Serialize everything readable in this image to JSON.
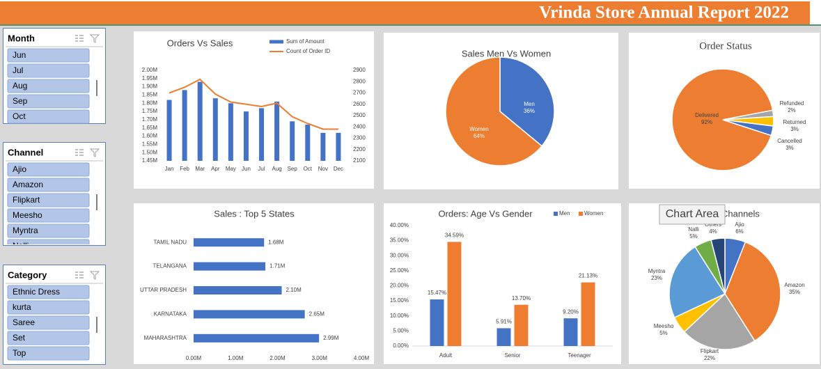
{
  "header": {
    "title": "Vrinda Store Annual Report 2022"
  },
  "slicers": [
    {
      "title": "Month",
      "items": [
        "Jun",
        "Jul",
        "Aug",
        "Sep",
        "Oct"
      ]
    },
    {
      "title": "Channel",
      "items": [
        "Ajio",
        "Amazon",
        "Flipkart",
        "Meesho",
        "Myntra",
        "Nalli"
      ]
    },
    {
      "title": "Category",
      "items": [
        "Ethnic Dress",
        "kurta",
        "Saree",
        "Set",
        "Top"
      ]
    }
  ],
  "tooltip": "Chart Area",
  "chart_data": [
    {
      "type": "combo",
      "title": "Orders Vs Sales",
      "categories": [
        "Jan",
        "Feb",
        "Mar",
        "Apr",
        "May",
        "Jun",
        "Jul",
        "Aug",
        "Sep",
        "Oct",
        "Nov",
        "Dec"
      ],
      "series": [
        {
          "name": "Sum of Amount",
          "type": "bar",
          "color": "#4472c4",
          "values": [
            1820000,
            1880000,
            1930000,
            1830000,
            1800000,
            1750000,
            1770000,
            1810000,
            1690000,
            1670000,
            1620000,
            1620000
          ]
        },
        {
          "name": "Count of Order ID",
          "type": "line",
          "axis": "y2",
          "color": "#ed7d31",
          "values": [
            2700,
            2750,
            2820,
            2690,
            2620,
            2600,
            2580,
            2610,
            2490,
            2430,
            2380,
            2380
          ]
        }
      ],
      "ylim": [
        1450000,
        2000000
      ],
      "yticks": [
        {
          "value": 1450000,
          "label": "1.45M"
        },
        {
          "value": 1500000,
          "label": "1.50M"
        },
        {
          "value": 1550000,
          "label": "1.55M"
        },
        {
          "value": 1600000,
          "label": "1.60M"
        },
        {
          "value": 1650000,
          "label": "1.65M"
        },
        {
          "value": 1700000,
          "label": "1.70M"
        },
        {
          "value": 1750000,
          "label": "1.75M"
        },
        {
          "value": 1800000,
          "label": "1.80M"
        },
        {
          "value": 1850000,
          "label": "1.85M"
        },
        {
          "value": 1900000,
          "label": "1.90M"
        },
        {
          "value": 1950000,
          "label": "1.95M"
        },
        {
          "value": 2000000,
          "label": "2.00M"
        }
      ],
      "y2lim": [
        2100,
        2900
      ],
      "y2ticks": [
        2100,
        2200,
        2300,
        2400,
        2500,
        2600,
        2700,
        2800,
        2900
      ]
    },
    {
      "type": "pie",
      "title": "Sales Men Vs Women",
      "categories": [
        "Men",
        "Women"
      ],
      "values": [
        36,
        64
      ],
      "value_labels": [
        "36%",
        "64%"
      ],
      "colors": [
        "#4472c4",
        "#ed7d31"
      ]
    },
    {
      "type": "pie",
      "title": "Order Status",
      "categories": [
        "Delivered",
        "Refunded",
        "Returned",
        "Cancelled"
      ],
      "values": [
        92,
        2,
        3,
        3
      ],
      "value_labels": [
        "92%",
        "2%",
        "3%",
        "3%"
      ],
      "colors": [
        "#ed7d31",
        "#a5a5a5",
        "#ffc000",
        "#4472c4"
      ]
    },
    {
      "type": "hbar",
      "title": "Sales : Top 5 States",
      "categories": [
        "TAMIL NADU",
        "TELANGANA",
        "UTTAR PRADESH",
        "KARNATAKA",
        "MAHARASHTRA"
      ],
      "values": [
        1680000,
        1710000,
        2100000,
        2650000,
        2990000
      ],
      "value_labels": [
        "1.68M",
        "1.71M",
        "2.10M",
        "2.65M",
        "2.99M"
      ],
      "color": "#4472c4",
      "xlim": [
        0,
        4000000
      ],
      "xticks": [
        {
          "value": 0,
          "label": "0.00M"
        },
        {
          "value": 1000000,
          "label": "1.00M"
        },
        {
          "value": 2000000,
          "label": "2.00M"
        },
        {
          "value": 3000000,
          "label": "3.00M"
        },
        {
          "value": 4000000,
          "label": "4.00M"
        }
      ]
    },
    {
      "type": "bar",
      "title": "Orders: Age Vs Gender",
      "categories": [
        "Adult",
        "Senior",
        "Teenager"
      ],
      "series": [
        {
          "name": "Men",
          "color": "#4472c4",
          "values": [
            15.47,
            5.91,
            9.2
          ],
          "value_labels": [
            "15.47%",
            "5.91%",
            "9.20%"
          ]
        },
        {
          "name": "Women",
          "color": "#ed7d31",
          "values": [
            34.59,
            13.7,
            21.13
          ],
          "value_labels": [
            "34.59%",
            "13.70%",
            "21.13%"
          ]
        }
      ],
      "ylim": [
        0,
        40
      ],
      "yticks": [
        {
          "value": 0,
          "label": "0.00%"
        },
        {
          "value": 5,
          "label": "5.00%"
        },
        {
          "value": 10,
          "label": "10.00%"
        },
        {
          "value": 15,
          "label": "15.00%"
        },
        {
          "value": 20,
          "label": "20.00%"
        },
        {
          "value": 25,
          "label": "25.00%"
        },
        {
          "value": 30,
          "label": "30.00%"
        },
        {
          "value": 35,
          "label": "35.00%"
        },
        {
          "value": 40,
          "label": "40.00%"
        }
      ],
      "legend": "top-right"
    },
    {
      "type": "pie",
      "title": "Orders: Channels",
      "categories": [
        "Ajio",
        "Amazon",
        "Flipkart",
        "Meesho",
        "Myntra",
        "Nalli",
        "Others"
      ],
      "values": [
        6,
        35,
        22,
        5,
        23,
        5,
        4
      ],
      "value_labels": [
        "6%",
        "35%",
        "22%",
        "5%",
        "23%",
        "5%",
        "4%"
      ],
      "colors": [
        "#4472c4",
        "#ed7d31",
        "#a5a5a5",
        "#ffc000",
        "#5b9bd5",
        "#70ad47",
        "#264478"
      ]
    }
  ]
}
